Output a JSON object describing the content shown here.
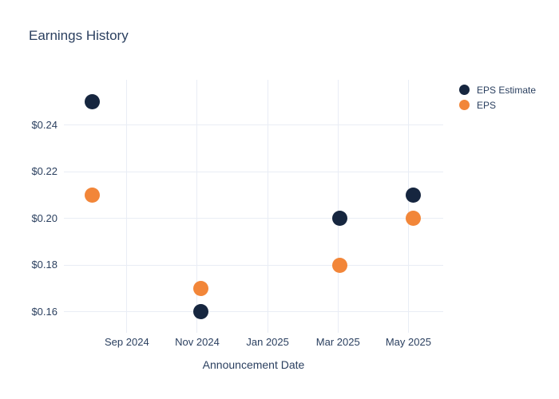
{
  "title": "Earnings History",
  "colors": {
    "title_text": "#2a3f5f",
    "tick_text": "#2a3f5f",
    "grid": "#e9edf5",
    "background": "#ffffff",
    "eps_estimate": "#16263f",
    "eps": "#f28639"
  },
  "legend": {
    "items": [
      {
        "label": "EPS Estimate",
        "color": "#16263f"
      },
      {
        "label": "EPS",
        "color": "#f28639"
      }
    ]
  },
  "chart_data": {
    "type": "scatter",
    "title": "Earnings History",
    "xlabel": "Announcement Date",
    "ylabel": "",
    "grid": true,
    "legend_position": "outside-top-right",
    "x_unit": "months since Sep 2024",
    "xlim": [
      -1.79,
      8.99
    ],
    "ylim": [
      0.151,
      0.2595
    ],
    "x_ticks": [
      {
        "label": "Sep 2024",
        "x": 0
      },
      {
        "label": "Nov 2024",
        "x": 2
      },
      {
        "label": "Jan 2025",
        "x": 4
      },
      {
        "label": "Mar 2025",
        "x": 6
      },
      {
        "label": "May 2025",
        "x": 8
      }
    ],
    "y_ticks": [
      {
        "label": "$0.16",
        "value": 0.16
      },
      {
        "label": "$0.18",
        "value": 0.18
      },
      {
        "label": "$0.20",
        "value": 0.2
      },
      {
        "label": "$0.22",
        "value": 0.22
      },
      {
        "label": "$0.24",
        "value": 0.24
      }
    ],
    "series": [
      {
        "name": "EPS Estimate",
        "color": "#16263f",
        "points": [
          {
            "date": "Aug 2024",
            "x": -0.99,
            "value": 0.25
          },
          {
            "date": "Nov 2024",
            "x": 2.1,
            "value": 0.16
          },
          {
            "date": "Mar 2025",
            "x": 6.05,
            "value": 0.2
          },
          {
            "date": "May 2025",
            "x": 8.15,
            "value": 0.21
          }
        ]
      },
      {
        "name": "EPS",
        "color": "#f28639",
        "points": [
          {
            "date": "Aug 2024",
            "x": -0.99,
            "value": 0.21
          },
          {
            "date": "Nov 2024",
            "x": 2.1,
            "value": 0.17
          },
          {
            "date": "Mar 2025",
            "x": 6.05,
            "value": 0.18
          },
          {
            "date": "May 2025",
            "x": 8.15,
            "value": 0.2
          }
        ]
      }
    ]
  }
}
